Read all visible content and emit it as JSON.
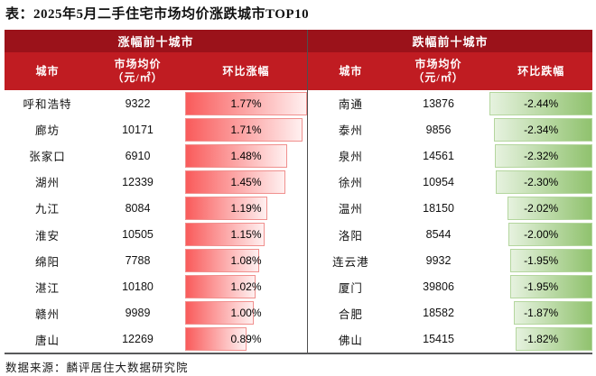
{
  "title": "表：2025年5月二手住宅市场均价涨跌城市TOP10",
  "footer": {
    "source": "数据来源：麟评居住大数据研究院"
  },
  "colors": {
    "header_dark": "#9b121a",
    "header_bright": "#c01c22",
    "bar_red_start": "#f95b5b",
    "bar_red_end": "#fff0f0",
    "bar_red_border": "#f0908e",
    "bar_green_start": "#e6f2df",
    "bar_green_end": "#90c26e",
    "bar_green_border": "#b4d69e"
  },
  "chart_data": [
    {
      "type": "bar",
      "title": "涨幅前十城市",
      "columns": [
        "城市",
        "市场均价\n（元/㎡）",
        "环比涨幅"
      ],
      "bar_scale_max": 1.77,
      "bar_color": "red",
      "rows": [
        {
          "city": "呼和浩特",
          "price": "9322",
          "change": 1.77,
          "change_label": "1.77%"
        },
        {
          "city": "廊坊",
          "price": "10171",
          "change": 1.71,
          "change_label": "1.71%"
        },
        {
          "city": "张家口",
          "price": "6910",
          "change": 1.48,
          "change_label": "1.48%"
        },
        {
          "city": "湖州",
          "price": "12339",
          "change": 1.45,
          "change_label": "1.45%"
        },
        {
          "city": "九江",
          "price": "8084",
          "change": 1.19,
          "change_label": "1.19%"
        },
        {
          "city": "淮安",
          "price": "10505",
          "change": 1.15,
          "change_label": "1.15%"
        },
        {
          "city": "绵阳",
          "price": "7788",
          "change": 1.08,
          "change_label": "1.08%"
        },
        {
          "city": "湛江",
          "price": "10180",
          "change": 1.02,
          "change_label": "1.02%"
        },
        {
          "city": "赣州",
          "price": "9989",
          "change": 1.0,
          "change_label": "1.00%"
        },
        {
          "city": "唐山",
          "price": "12269",
          "change": 0.89,
          "change_label": "0.89%"
        }
      ]
    },
    {
      "type": "bar",
      "title": "跌幅前十城市",
      "columns": [
        "城市",
        "市场均价\n（元/㎡）",
        "环比跌幅"
      ],
      "bar_scale_max": 2.44,
      "bar_color": "green",
      "rows": [
        {
          "city": "南通",
          "price": "13876",
          "change": -2.44,
          "change_label": "-2.44%"
        },
        {
          "city": "泰州",
          "price": "9856",
          "change": -2.34,
          "change_label": "-2.34%"
        },
        {
          "city": "泉州",
          "price": "14561",
          "change": -2.32,
          "change_label": "-2.32%"
        },
        {
          "city": "徐州",
          "price": "10954",
          "change": -2.3,
          "change_label": "-2.30%"
        },
        {
          "city": "温州",
          "price": "18150",
          "change": -2.02,
          "change_label": "-2.02%"
        },
        {
          "city": "洛阳",
          "price": "8544",
          "change": -2.0,
          "change_label": "-2.00%"
        },
        {
          "city": "连云港",
          "price": "9932",
          "change": -1.95,
          "change_label": "-1.95%"
        },
        {
          "city": "厦门",
          "price": "39806",
          "change": -1.95,
          "change_label": "-1.95%"
        },
        {
          "city": "合肥",
          "price": "18582",
          "change": -1.87,
          "change_label": "-1.87%"
        },
        {
          "city": "佛山",
          "price": "15415",
          "change": -1.82,
          "change_label": "-1.82%"
        }
      ]
    }
  ]
}
